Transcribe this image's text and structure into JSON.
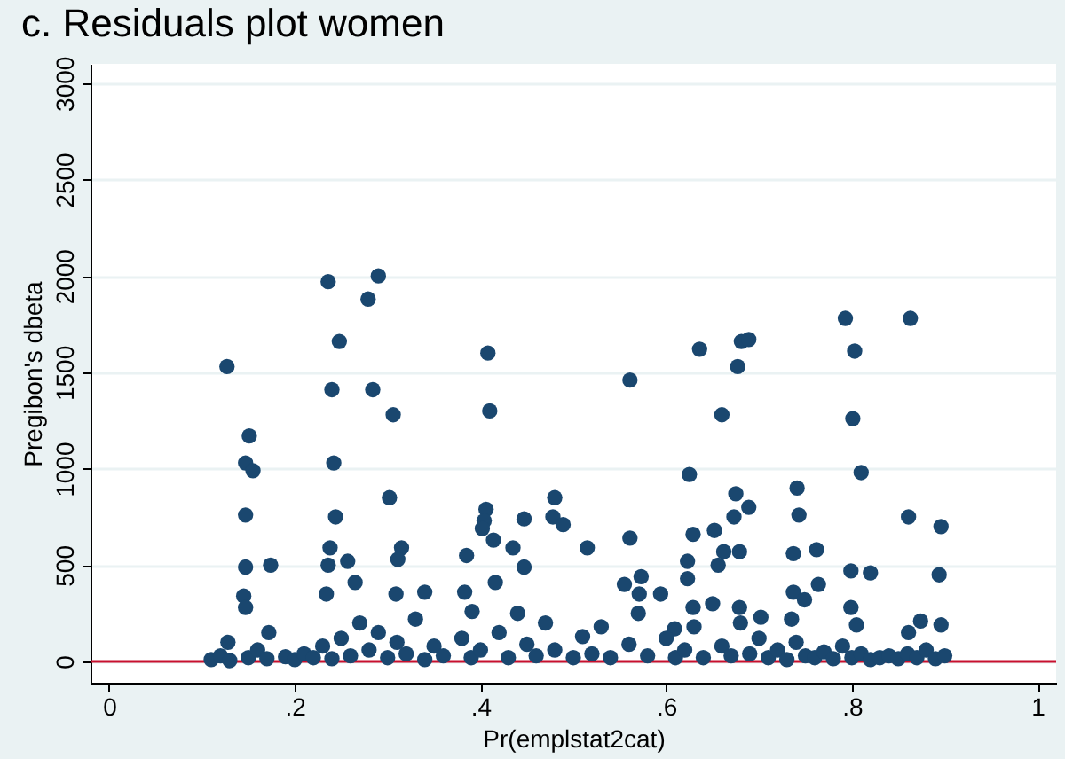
{
  "chart_data": {
    "type": "scatter",
    "title": "c.      Residuals plot women",
    "xlabel": "Pr(emplstat2cat)",
    "ylabel": "Pregibon's dbeta",
    "xlim": [
      -0.02,
      1.02
    ],
    "ylim": [
      -110,
      3100
    ],
    "xticks": [
      0,
      {
        "value": 0.2,
        "label": ".2"
      },
      {
        "value": 0.4,
        "label": ".4"
      },
      {
        "value": 0.6,
        "label": ".6"
      },
      {
        "value": 0.8,
        "label": ".8"
      },
      1
    ],
    "yticks": [
      0,
      500,
      1000,
      1500,
      2000,
      2500,
      3000
    ],
    "grid": "y",
    "marker": "circle",
    "ref_lines": [
      {
        "axis": "y",
        "value": 0,
        "color": "#c8102e"
      }
    ],
    "series": [
      {
        "color": "#1a476f",
        "x": [
          0.127,
          0.151,
          0.147,
          0.155,
          0.147,
          0.147,
          0.174,
          0.145,
          0.147,
          0.236,
          0.29,
          0.279,
          0.248,
          0.24,
          0.284,
          0.306,
          0.242,
          0.244,
          0.302,
          0.238,
          0.236,
          0.257,
          0.315,
          0.311,
          0.234,
          0.265,
          0.309,
          0.34,
          0.408,
          0.41,
          0.406,
          0.404,
          0.402,
          0.414,
          0.447,
          0.435,
          0.48,
          0.478,
          0.489,
          0.385,
          0.383,
          0.391,
          0.447,
          0.416,
          0.128,
          0.172,
          0.561,
          0.636,
          0.681,
          0.689,
          0.677,
          0.66,
          0.625,
          0.675,
          0.689,
          0.673,
          0.652,
          0.629,
          0.561,
          0.515,
          0.662,
          0.679,
          0.623,
          0.656,
          0.555,
          0.573,
          0.571,
          0.623,
          0.594,
          0.679,
          0.629,
          0.702,
          0.609,
          0.793,
          0.863,
          0.803,
          0.801,
          0.81,
          0.741,
          0.743,
          0.737,
          0.762,
          0.737,
          0.749,
          0.764,
          0.735,
          0.799,
          0.82,
          0.799,
          0.805,
          0.861,
          0.896,
          0.894,
          0.874,
          0.861,
          0.896,
          0.11,
          0.12,
          0.13,
          0.15,
          0.16,
          0.17,
          0.19,
          0.2,
          0.21,
          0.22,
          0.23,
          0.24,
          0.25,
          0.26,
          0.27,
          0.28,
          0.29,
          0.3,
          0.31,
          0.32,
          0.33,
          0.34,
          0.35,
          0.36,
          0.38,
          0.39,
          0.4,
          0.42,
          0.43,
          0.44,
          0.45,
          0.46,
          0.47,
          0.48,
          0.5,
          0.51,
          0.52,
          0.53,
          0.54,
          0.56,
          0.57,
          0.58,
          0.6,
          0.61,
          0.62,
          0.63,
          0.64,
          0.65,
          0.66,
          0.67,
          0.68,
          0.69,
          0.7,
          0.71,
          0.72,
          0.73,
          0.74,
          0.75,
          0.76,
          0.77,
          0.78,
          0.79,
          0.8,
          0.81,
          0.82,
          0.83,
          0.84,
          0.85,
          0.86,
          0.87,
          0.88,
          0.89,
          0.9
        ],
        "values": [
          1530,
          1170,
          1030,
          990,
          760,
          490,
          500,
          340,
          280,
          1970,
          2000,
          1880,
          1660,
          1410,
          1410,
          1280,
          1030,
          750,
          850,
          590,
          500,
          520,
          590,
          530,
          350,
          410,
          350,
          360,
          1600,
          1300,
          790,
          730,
          690,
          630,
          740,
          590,
          850,
          750,
          710,
          550,
          360,
          260,
          490,
          410,
          100,
          150,
          1460,
          1620,
          1660,
          1670,
          1530,
          1280,
          970,
          870,
          800,
          750,
          680,
          660,
          640,
          590,
          570,
          570,
          520,
          500,
          400,
          440,
          350,
          430,
          350,
          280,
          280,
          230,
          170,
          1780,
          1780,
          1610,
          1260,
          980,
          900,
          760,
          560,
          580,
          360,
          320,
          400,
          220,
          470,
          460,
          280,
          190,
          750,
          700,
          450,
          210,
          150,
          190,
          10,
          30,
          5,
          20,
          60,
          15,
          25,
          10,
          40,
          20,
          80,
          15,
          120,
          30,
          200,
          60,
          150,
          20,
          100,
          40,
          220,
          10,
          80,
          30,
          120,
          20,
          60,
          150,
          20,
          250,
          90,
          30,
          200,
          60,
          20,
          130,
          40,
          180,
          20,
          90,
          250,
          30,
          120,
          20,
          60,
          180,
          20,
          300,
          80,
          30,
          200,
          40,
          120,
          20,
          60,
          10,
          100,
          30,
          20,
          50,
          15,
          80,
          20,
          40,
          10,
          20,
          30,
          15,
          40,
          20,
          60,
          15,
          30
        ]
      }
    ]
  }
}
